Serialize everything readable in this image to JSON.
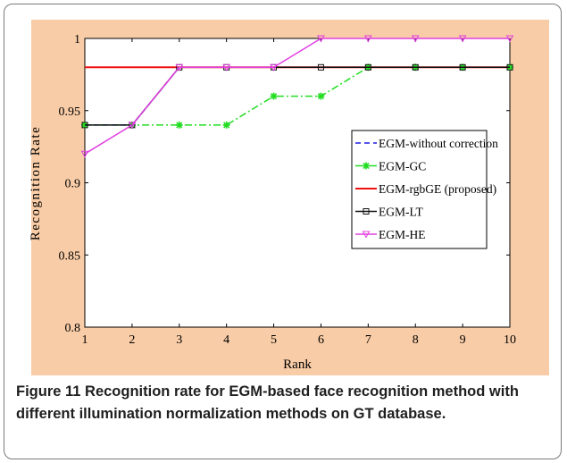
{
  "caption": {
    "label": "Figure 11",
    "text": " Recognition rate for EGM-based face recognition method with different illumination normalization methods on GT database."
  },
  "chart_data": {
    "type": "line",
    "xlabel": "Rank",
    "ylabel": "Recognition Rate",
    "xlim": [
      1,
      10
    ],
    "ylim": [
      0.8,
      1
    ],
    "x": [
      1,
      2,
      3,
      4,
      5,
      6,
      7,
      8,
      9,
      10
    ],
    "xticks": [
      "1",
      "2",
      "3",
      "4",
      "5",
      "6",
      "7",
      "8",
      "9",
      "10"
    ],
    "yticks": [
      "0.8",
      "0.85",
      "0.9",
      "0.95",
      "1"
    ],
    "grid": false,
    "legend_position": "right",
    "background_color": "#f8cca6",
    "series": [
      {
        "name": "EGM-without correction",
        "color": "#1c1ce0",
        "dash": "6,4",
        "marker": "none",
        "values": [
          0.94,
          0.94,
          0.98,
          0.98,
          0.98,
          0.98,
          0.98,
          0.98,
          0.98,
          0.98
        ]
      },
      {
        "name": "EGM-GC",
        "color": "#22dd22",
        "dash": "8,3,2,3",
        "marker": "star",
        "values": [
          0.94,
          0.94,
          0.94,
          0.94,
          0.96,
          0.96,
          0.98,
          0.98,
          0.98,
          0.98
        ]
      },
      {
        "name": "EGM-rgbGE (proposed)",
        "color": "#ee1111",
        "dash": "",
        "marker": "none",
        "values": [
          0.98,
          0.98,
          0.98,
          0.98,
          0.98,
          0.98,
          0.98,
          0.98,
          0.98,
          0.98
        ]
      },
      {
        "name": "EGM-LT",
        "color": "#111111",
        "dash": "",
        "marker": "square",
        "values": [
          0.94,
          0.94,
          0.98,
          0.98,
          0.98,
          0.98,
          0.98,
          0.98,
          0.98,
          0.98
        ]
      },
      {
        "name": "EGM-HE",
        "color": "#e040e0",
        "dash": "",
        "marker": "triangle-down",
        "values": [
          0.92,
          0.94,
          0.98,
          0.98,
          0.98,
          1.0,
          1.0,
          1.0,
          1.0,
          1.0
        ]
      }
    ]
  }
}
